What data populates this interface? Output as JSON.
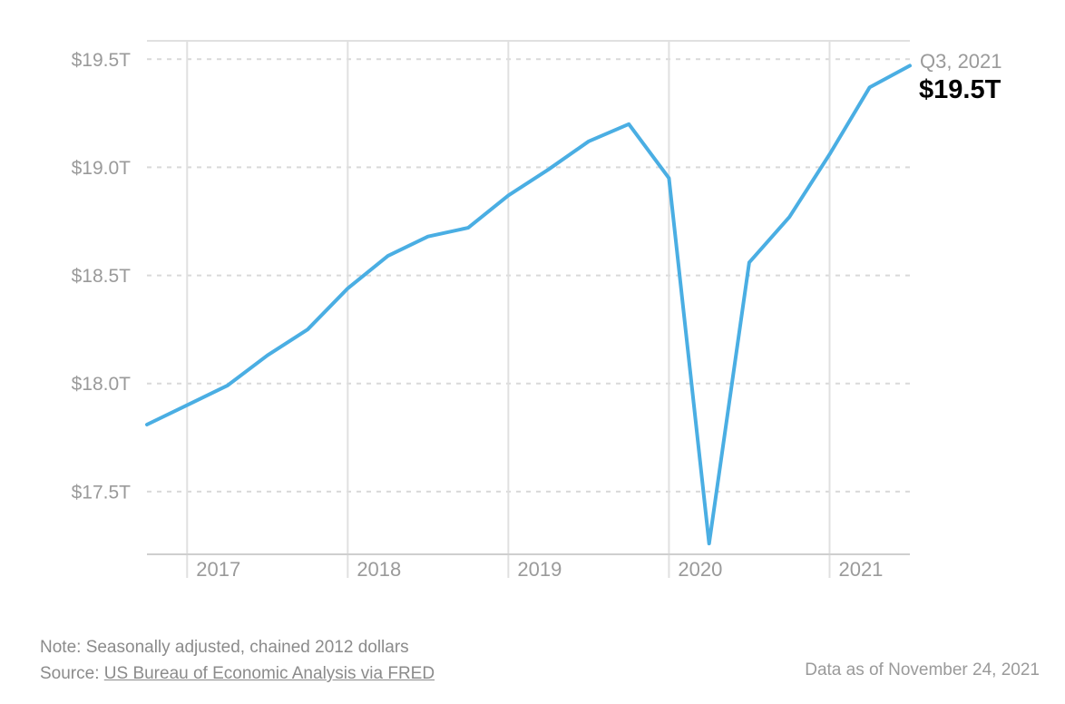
{
  "chart_data": {
    "type": "line",
    "unit": "trillions of US dollars",
    "x": [
      "2016 Q4",
      "2017 Q1",
      "2017 Q2",
      "2017 Q3",
      "2017 Q4",
      "2018 Q1",
      "2018 Q2",
      "2018 Q3",
      "2018 Q4",
      "2019 Q1",
      "2019 Q2",
      "2019 Q3",
      "2019 Q4",
      "2020 Q1",
      "2020 Q2",
      "2020 Q3",
      "2020 Q4",
      "2021 Q1",
      "2021 Q2",
      "2021 Q3"
    ],
    "values": [
      17.81,
      17.9,
      17.99,
      18.13,
      18.25,
      18.44,
      18.59,
      18.68,
      18.72,
      18.87,
      18.99,
      19.12,
      19.2,
      18.95,
      17.26,
      18.56,
      18.77,
      19.06,
      19.37,
      19.47
    ],
    "ylim": [
      17.21,
      19.585
    ],
    "y_ticks": [
      {
        "value": 19.5,
        "label": "$19.5T"
      },
      {
        "value": 19.0,
        "label": "$19.0T"
      },
      {
        "value": 18.5,
        "label": "$18.5T"
      },
      {
        "value": 18.0,
        "label": "$18.0T"
      },
      {
        "value": 17.5,
        "label": "$17.5T"
      }
    ],
    "x_ticks": [
      {
        "label": "2017",
        "quarter_index": 1
      },
      {
        "label": "2018",
        "quarter_index": 5
      },
      {
        "label": "2019",
        "quarter_index": 9
      },
      {
        "label": "2020",
        "quarter_index": 13
      },
      {
        "label": "2021",
        "quarter_index": 17
      }
    ],
    "annotation": {
      "label": "Q3, 2021",
      "value": "$19.5T"
    },
    "grid": true,
    "legend": "none",
    "colors": {
      "line": "#4aaee3",
      "dashed_grid": "#d9d9d9",
      "solid_grid": "#e0e0e0",
      "axis": "#cfcfcf",
      "tick_text": "#9a9a9a",
      "annotation_value": "#000000"
    }
  },
  "footer": {
    "note": "Note: Seasonally adjusted, chained 2012 dollars",
    "source_prefix": "Source: ",
    "source_link": "US Bureau of Economic Analysis via FRED",
    "data_as_of": "Data as of November 24, 2021"
  }
}
